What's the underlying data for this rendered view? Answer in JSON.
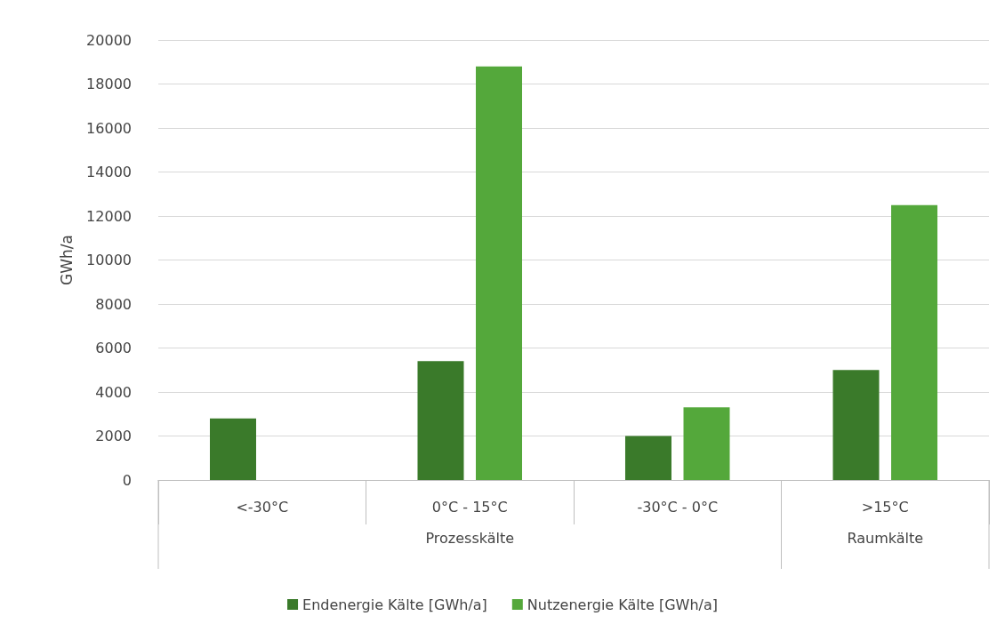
{
  "chart_data": {
    "type": "bar",
    "ylabel": "GWh/a",
    "categories": [
      "<-30°C",
      "0°C - 15°C",
      "-30°C - 0°C",
      ">15°C"
    ],
    "series": [
      {
        "name": "Endenergie Kälte [GWh/a]",
        "color": "#3a7a2a",
        "values": [
          2800,
          5400,
          2000,
          5000
        ]
      },
      {
        "name": "Nutzenergie Kälte [GWh/a]",
        "color": "#54a83b",
        "values": [
          null,
          18800,
          3300,
          12500
        ]
      }
    ],
    "annotations": [
      "Prozesskälte",
      "Raumkälte"
    ],
    "ylim": [
      0,
      20000
    ],
    "yticks": [
      0,
      2000,
      4000,
      6000,
      8000,
      10000,
      12000,
      14000,
      16000,
      18000,
      20000
    ],
    "grid": "y",
    "legend": "bottom"
  }
}
